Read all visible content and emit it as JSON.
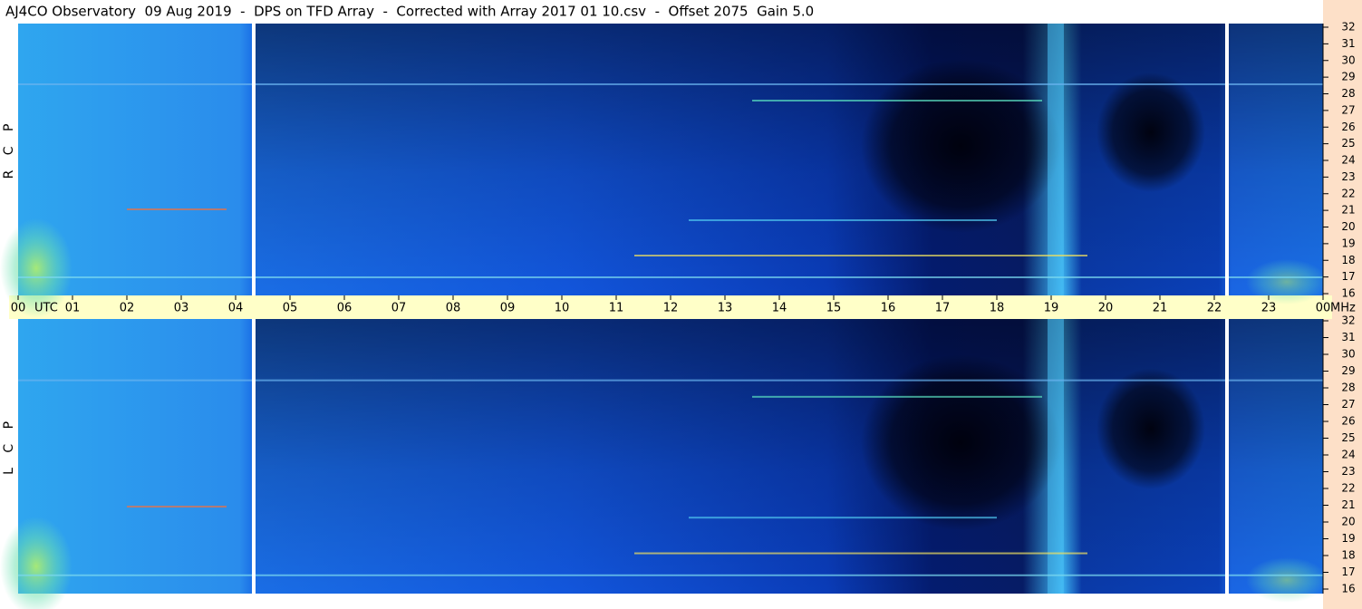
{
  "title": "AJ4CO Observatory  09 Aug 2019  -  DPS on TFD Array  -  Corrected with Array 2017 01 10.csv  -  Offset 2075  Gain 5.0",
  "x_axis": {
    "unit": "UTC",
    "freq_unit": "MHz",
    "xlim": [
      0,
      24
    ],
    "xticks": [
      {
        "value": 0,
        "label": "00"
      },
      {
        "value": 1,
        "label": "01"
      },
      {
        "value": 2,
        "label": "02"
      },
      {
        "value": 3,
        "label": "03"
      },
      {
        "value": 4,
        "label": "04"
      },
      {
        "value": 5,
        "label": "05"
      },
      {
        "value": 6,
        "label": "06"
      },
      {
        "value": 7,
        "label": "07"
      },
      {
        "value": 8,
        "label": "08"
      },
      {
        "value": 9,
        "label": "09"
      },
      {
        "value": 10,
        "label": "10"
      },
      {
        "value": 11,
        "label": "11"
      },
      {
        "value": 12,
        "label": "12"
      },
      {
        "value": 13,
        "label": "13"
      },
      {
        "value": 14,
        "label": "14"
      },
      {
        "value": 15,
        "label": "15"
      },
      {
        "value": 16,
        "label": "16"
      },
      {
        "value": 17,
        "label": "17"
      },
      {
        "value": 18,
        "label": "18"
      },
      {
        "value": 19,
        "label": "19"
      },
      {
        "value": 20,
        "label": "20"
      },
      {
        "value": 21,
        "label": "21"
      },
      {
        "value": 22,
        "label": "22"
      },
      {
        "value": 23,
        "label": "23"
      },
      {
        "value": 24,
        "label": "00"
      }
    ]
  },
  "chart_data": [
    {
      "type": "spectrogram",
      "label": "R C P",
      "ylim": [
        16,
        32
      ],
      "yticks": [
        16,
        17,
        18,
        19,
        20,
        21,
        22,
        23,
        24,
        25,
        26,
        27,
        28,
        29,
        30,
        31,
        32
      ]
    },
    {
      "type": "spectrogram",
      "label": "L C P",
      "ylim": [
        16,
        32
      ],
      "yticks": [
        16,
        17,
        18,
        19,
        20,
        21,
        22,
        23,
        24,
        25,
        26,
        27,
        28,
        29,
        30,
        31,
        32
      ]
    }
  ]
}
